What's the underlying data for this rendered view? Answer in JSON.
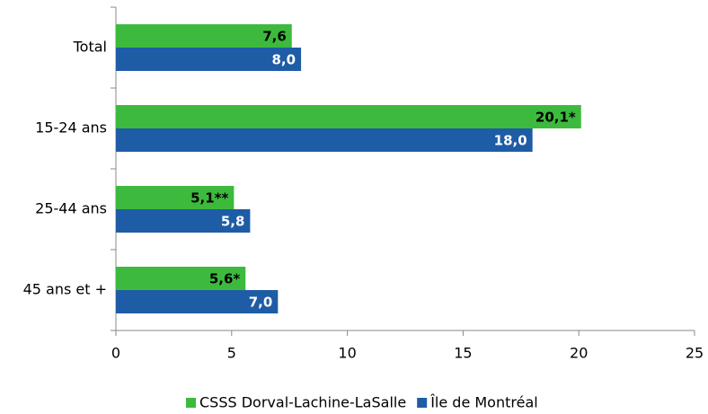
{
  "chart_data": {
    "type": "hbar",
    "categories": [
      "Total",
      "15-24 ans",
      "25-44 ans",
      "45 ans et +"
    ],
    "series": [
      {
        "name": "CSSS Dorval-Lachine-LaSalle",
        "color": "#3dba3d",
        "label_color": "#000000",
        "values": [
          7.6,
          20.1,
          5.1,
          5.6
        ],
        "value_labels": [
          "7,6",
          "20,1*",
          "5,1**",
          "5,6*"
        ]
      },
      {
        "name": "Île de Montréal",
        "color": "#1f5ca6",
        "label_color": "#ffffff",
        "values": [
          8.0,
          18.0,
          5.8,
          7.0
        ],
        "value_labels": [
          "8,0",
          "18,0",
          "5,8",
          "7,0"
        ]
      }
    ],
    "xlim": [
      0,
      25
    ],
    "xticks": [
      0,
      5,
      10,
      15,
      20,
      25
    ],
    "legend": "bottom"
  }
}
